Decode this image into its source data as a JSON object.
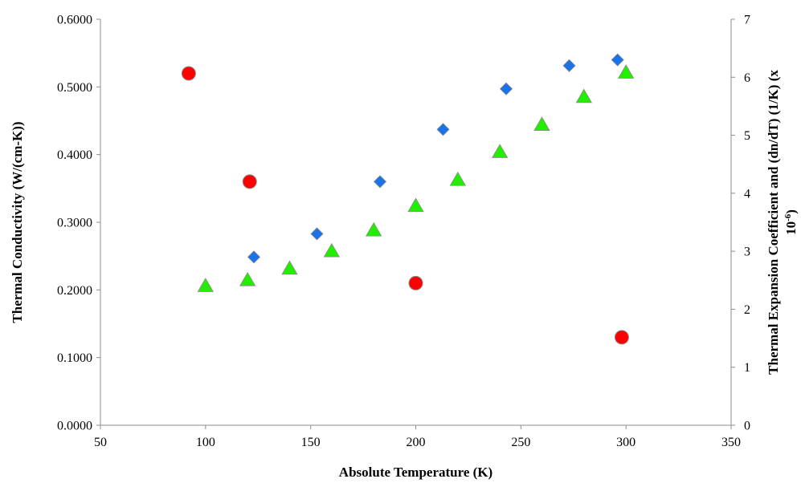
{
  "chart_data": {
    "type": "scatter",
    "title": "",
    "xlabel": "Absolute Temperature (K)",
    "ylabel": "Thermal Conductivity (W/(cm-K))",
    "y2label_line1": "Thermal Expansion Coefficient and (dn/dT) (1/K) (x",
    "y2label_line2": "10",
    "y2label_sup": "-6",
    "y2label_close": ")",
    "xlim": [
      50,
      350
    ],
    "ylim": [
      0,
      0.6
    ],
    "y2lim": [
      0,
      7
    ],
    "xticks": [
      50,
      100,
      150,
      200,
      250,
      300,
      350
    ],
    "yticks": [
      "0.0000",
      "0.1000",
      "0.2000",
      "0.3000",
      "0.4000",
      "0.5000",
      "0.6000"
    ],
    "y2ticks": [
      0,
      1,
      2,
      3,
      4,
      5,
      6,
      7
    ],
    "grid": false,
    "series": [
      {
        "axis": "left",
        "marker": "circle",
        "color": "#ff0000",
        "points": [
          [
            92,
            0.52
          ],
          [
            121,
            0.36
          ],
          [
            200,
            0.21
          ],
          [
            298,
            0.13
          ]
        ]
      },
      {
        "axis": "right",
        "marker": "diamond",
        "color": "#1a73e8",
        "points": [
          [
            123,
            2.9
          ],
          [
            153,
            3.3
          ],
          [
            183,
            4.2
          ],
          [
            213,
            5.1
          ],
          [
            243,
            5.8
          ],
          [
            273,
            6.2
          ],
          [
            296,
            6.3
          ]
        ]
      },
      {
        "axis": "right",
        "marker": "triangle",
        "color": "#22ee00",
        "points": [
          [
            100,
            2.4
          ],
          [
            120,
            2.5
          ],
          [
            140,
            2.7
          ],
          [
            160,
            3.0
          ],
          [
            180,
            3.36
          ],
          [
            200,
            3.78
          ],
          [
            220,
            4.23
          ],
          [
            240,
            4.71
          ],
          [
            260,
            5.18
          ],
          [
            280,
            5.66
          ],
          [
            300,
            6.08
          ]
        ]
      }
    ]
  }
}
